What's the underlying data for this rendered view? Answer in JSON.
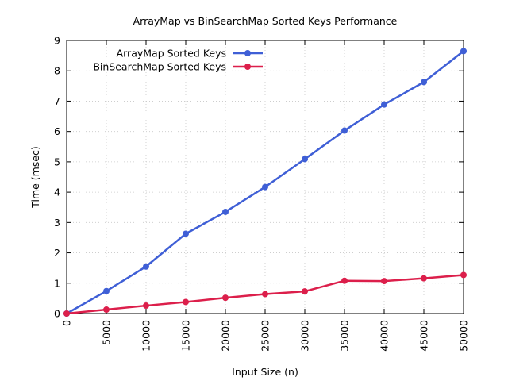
{
  "chart_data": {
    "type": "line",
    "title": "ArrayMap vs BinSearchMap Sorted Keys Performance",
    "xlabel": "Input Size (n)",
    "ylabel": "Time (msec)",
    "xlim": [
      0,
      50000
    ],
    "ylim": [
      0,
      9
    ],
    "x_ticks": [
      "0",
      "5000",
      "10000",
      "15000",
      "20000",
      "25000",
      "30000",
      "35000",
      "40000",
      "45000",
      "50000"
    ],
    "y_ticks": [
      "0",
      "1",
      "2",
      "3",
      "4",
      "5",
      "6",
      "7",
      "8",
      "9"
    ],
    "grid": true,
    "legend_position": "top-left",
    "x": [
      0,
      5000,
      10000,
      15000,
      20000,
      25000,
      30000,
      35000,
      40000,
      45000,
      50000
    ],
    "series": [
      {
        "name": "ArrayMap Sorted Keys",
        "color": "#3f5fd6",
        "values": [
          0.0,
          0.74,
          1.55,
          2.63,
          3.35,
          4.17,
          5.09,
          6.03,
          6.89,
          7.63,
          8.65
        ]
      },
      {
        "name": "BinSearchMap Sorted Keys",
        "color": "#dc1f4b",
        "values": [
          0.0,
          0.13,
          0.26,
          0.38,
          0.52,
          0.64,
          0.73,
          1.08,
          1.07,
          1.16,
          1.27
        ]
      }
    ]
  }
}
